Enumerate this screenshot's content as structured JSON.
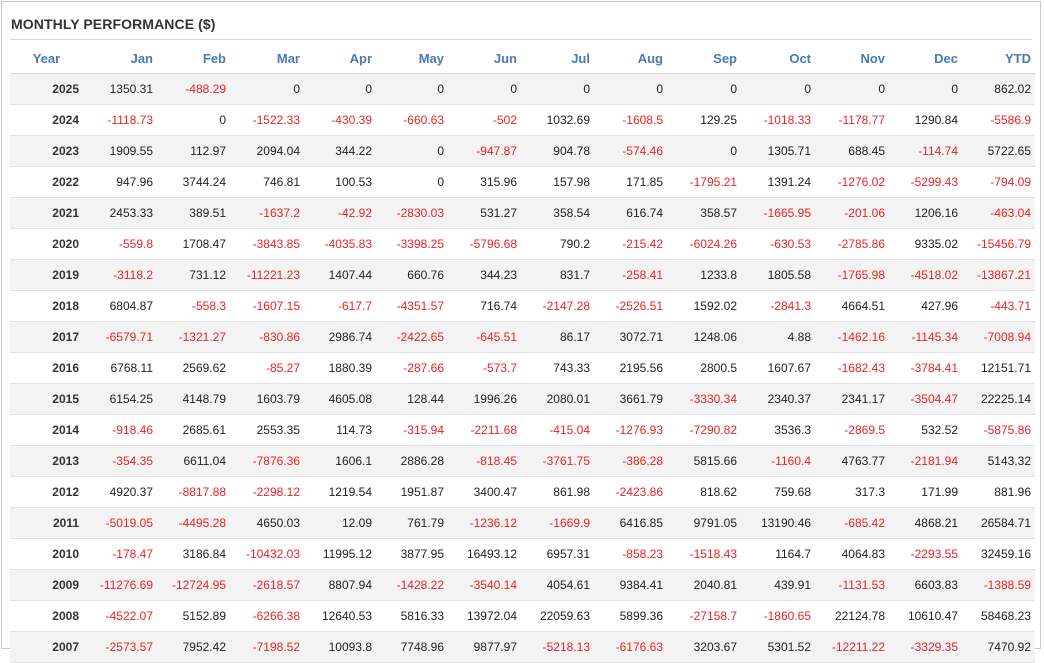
{
  "title": "MONTHLY PERFORMANCE ($)",
  "colors": {
    "header": "#4a79b4",
    "negative": "#ee2222",
    "positive": "#222222",
    "stripe": "#f3f3f3"
  },
  "columns": [
    "Year",
    "Jan",
    "Feb",
    "Mar",
    "Apr",
    "May",
    "Jun",
    "Jul",
    "Aug",
    "Sep",
    "Oct",
    "Nov",
    "Dec",
    "YTD"
  ],
  "rows": [
    [
      "2025",
      "1350.31",
      "-488.29",
      "0",
      "0",
      "0",
      "0",
      "0",
      "0",
      "0",
      "0",
      "0",
      "0",
      "862.02"
    ],
    [
      "2024",
      "-1118.73",
      "0",
      "-1522.33",
      "-430.39",
      "-660.63",
      "-502",
      "1032.69",
      "-1608.5",
      "129.25",
      "-1018.33",
      "-1178.77",
      "1290.84",
      "-5586.9"
    ],
    [
      "2023",
      "1909.55",
      "112.97",
      "2094.04",
      "344.22",
      "0",
      "-947.87",
      "904.78",
      "-574.46",
      "0",
      "1305.71",
      "688.45",
      "-114.74",
      "5722.65"
    ],
    [
      "2022",
      "947.96",
      "3744.24",
      "746.81",
      "100.53",
      "0",
      "315.96",
      "157.98",
      "171.85",
      "-1795.21",
      "1391.24",
      "-1276.02",
      "-5299.43",
      "-794.09"
    ],
    [
      "2021",
      "2453.33",
      "389.51",
      "-1637.2",
      "-42.92",
      "-2830.03",
      "531.27",
      "358.54",
      "616.74",
      "358.57",
      "-1665.95",
      "-201.06",
      "1206.16",
      "-463.04"
    ],
    [
      "2020",
      "-559.8",
      "1708.47",
      "-3843.85",
      "-4035.83",
      "-3398.25",
      "-5796.68",
      "790.2",
      "-215.42",
      "-6024.26",
      "-630.53",
      "-2785.86",
      "9335.02",
      "-15456.79"
    ],
    [
      "2019",
      "-3118.2",
      "731.12",
      "-11221.23",
      "1407.44",
      "660.76",
      "344.23",
      "831.7",
      "-258.41",
      "1233.8",
      "1805.58",
      "-1765.98",
      "-4518.02",
      "-13867.21"
    ],
    [
      "2018",
      "6804.87",
      "-558.3",
      "-1607.15",
      "-617.7",
      "-4351.57",
      "716.74",
      "-2147.28",
      "-2526.51",
      "1592.02",
      "-2841.3",
      "4664.51",
      "427.96",
      "-443.71"
    ],
    [
      "2017",
      "-6579.71",
      "-1321.27",
      "-830.86",
      "2986.74",
      "-2422.65",
      "-645.51",
      "86.17",
      "3072.71",
      "1248.06",
      "4.88",
      "-1462.16",
      "-1145.34",
      "-7008.94"
    ],
    [
      "2016",
      "6768.11",
      "2569.62",
      "-85.27",
      "1880.39",
      "-287.66",
      "-573.7",
      "743.33",
      "2195.56",
      "2800.5",
      "1607.67",
      "-1682.43",
      "-3784.41",
      "12151.71"
    ],
    [
      "2015",
      "6154.25",
      "4148.79",
      "1603.79",
      "4605.08",
      "128.44",
      "1996.26",
      "2080.01",
      "3661.79",
      "-3330.34",
      "2340.37",
      "2341.17",
      "-3504.47",
      "22225.14"
    ],
    [
      "2014",
      "-918.46",
      "2685.61",
      "2553.35",
      "114.73",
      "-315.94",
      "-2211.68",
      "-415.04",
      "-1276.93",
      "-7290.82",
      "3536.3",
      "-2869.5",
      "532.52",
      "-5875.86"
    ],
    [
      "2013",
      "-354.35",
      "6611.04",
      "-7876.36",
      "1606.1",
      "2886.28",
      "-818.45",
      "-3761.75",
      "-386.28",
      "5815.66",
      "-1160.4",
      "4763.77",
      "-2181.94",
      "5143.32"
    ],
    [
      "2012",
      "4920.37",
      "-8817.88",
      "-2298.12",
      "1219.54",
      "1951.87",
      "3400.47",
      "861.98",
      "-2423.86",
      "818.62",
      "759.68",
      "317.3",
      "171.99",
      "881.96"
    ],
    [
      "2011",
      "-5019.05",
      "-4495.28",
      "4650.03",
      "12.09",
      "761.79",
      "-1236.12",
      "-1669.9",
      "6416.85",
      "9791.05",
      "13190.46",
      "-685.42",
      "4868.21",
      "26584.71"
    ],
    [
      "2010",
      "-178.47",
      "3186.84",
      "-10432.03",
      "11995.12",
      "3877.95",
      "16493.12",
      "6957.31",
      "-858.23",
      "-1518.43",
      "1164.7",
      "4064.83",
      "-2293.55",
      "32459.16"
    ],
    [
      "2009",
      "-11276.69",
      "-12724.95",
      "-2618.57",
      "8807.94",
      "-1428.22",
      "-3540.14",
      "4054.61",
      "9384.41",
      "2040.81",
      "439.91",
      "-1131.53",
      "6603.83",
      "-1388.59"
    ],
    [
      "2008",
      "-4522.07",
      "5152.89",
      "-6266.38",
      "12640.53",
      "5816.33",
      "13972.04",
      "22059.63",
      "5899.36",
      "-27158.7",
      "-1860.65",
      "22124.78",
      "10610.47",
      "58468.23"
    ],
    [
      "2007",
      "-2573.57",
      "7952.42",
      "-7198.52",
      "10093.8",
      "7748.96",
      "9877.97",
      "-5218.13",
      "-6176.63",
      "3203.67",
      "5301.52",
      "-12211.22",
      "-3329.35",
      "7470.92"
    ]
  ]
}
